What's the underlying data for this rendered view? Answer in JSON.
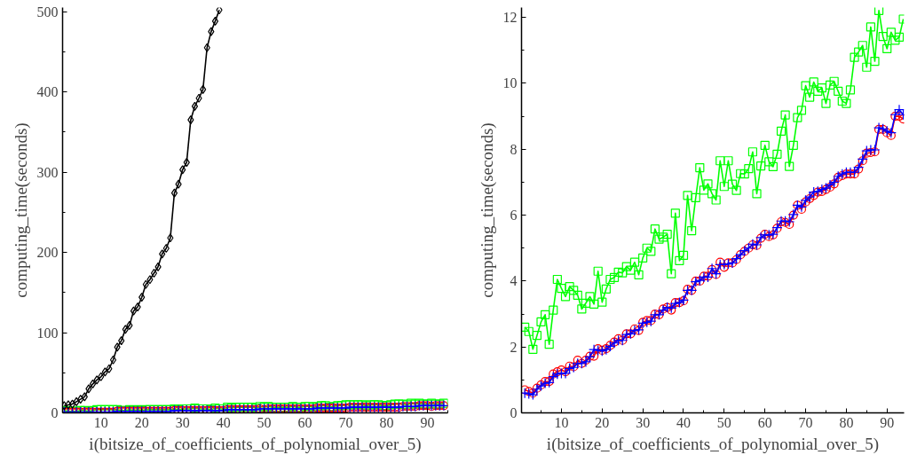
{
  "chart_data": [
    {
      "type": "line",
      "xlabel": "i(bitsize_of_coefficients_of_polynomial_over_5)",
      "ylabel": "computing_time(seconds)",
      "xlim": [
        0.6,
        95
      ],
      "ylim": [
        0,
        505
      ],
      "xticks": [
        10,
        20,
        30,
        40,
        50,
        60,
        70,
        80,
        90
      ],
      "yticks": [
        0,
        100,
        200,
        300,
        400,
        500
      ],
      "grid": false,
      "line_style": "solid",
      "x": [
        1,
        2,
        3,
        4,
        5,
        6,
        7,
        8,
        9,
        10,
        11,
        12,
        13,
        14,
        15,
        16,
        17,
        18,
        19,
        20,
        21,
        22,
        23,
        24,
        25,
        26,
        27,
        28,
        29,
        30,
        31,
        32,
        33,
        34,
        35,
        36,
        37,
        38,
        39,
        40,
        41,
        42,
        43,
        44,
        45,
        46,
        47,
        48,
        49,
        50,
        51,
        52,
        53,
        54,
        55,
        56,
        57,
        58,
        59,
        60,
        61,
        62,
        63,
        64,
        65,
        66,
        67,
        68,
        69,
        70,
        71,
        72,
        73,
        74,
        75,
        76,
        77,
        78,
        79,
        80,
        81,
        82,
        83,
        84,
        85,
        86,
        87,
        88,
        89,
        90,
        91,
        92,
        93,
        94
      ],
      "series": [
        {
          "color": "#00ff00",
          "marker": "square",
          "values": [
            3,
            2,
            2,
            2,
            3,
            3,
            2,
            3,
            4,
            4,
            4,
            4,
            4,
            4,
            3,
            3,
            4,
            3,
            4,
            3,
            4,
            4,
            4,
            4,
            4,
            4,
            4,
            5,
            4,
            5,
            5,
            5,
            6,
            5,
            5,
            5,
            4,
            6,
            5,
            5,
            7,
            6,
            7,
            7,
            7,
            7,
            7,
            6,
            8,
            7,
            8,
            7,
            7,
            7,
            7,
            7,
            8,
            7,
            7,
            8,
            8,
            7,
            8,
            9,
            9,
            7,
            8,
            9,
            9,
            10,
            10,
            10,
            10,
            10,
            9,
            10,
            10,
            10,
            9,
            9,
            10,
            11,
            11,
            11,
            10,
            12,
            11,
            12,
            11,
            11,
            12,
            11,
            11,
            12
          ]
        },
        {
          "type": "scatter",
          "color": "#ff0000",
          "marker": "circle",
          "values": [
            1,
            1,
            1,
            1,
            1,
            1,
            1,
            1,
            1,
            1,
            1,
            1,
            1,
            2,
            2,
            2,
            2,
            2,
            2,
            2,
            2,
            2,
            2,
            2,
            2,
            2,
            2,
            3,
            3,
            3,
            3,
            3,
            3,
            3,
            3,
            3,
            3,
            3,
            3,
            3,
            4,
            4,
            4,
            4,
            4,
            4,
            4,
            4,
            5,
            4,
            5,
            5,
            5,
            5,
            5,
            5,
            5,
            5,
            5,
            5,
            5,
            5,
            6,
            6,
            6,
            6,
            6,
            6,
            6,
            6,
            7,
            7,
            7,
            7,
            7,
            7,
            7,
            7,
            7,
            7,
            7,
            7,
            7,
            8,
            8,
            8,
            8,
            9,
            9,
            9,
            8,
            9,
            9,
            9
          ]
        },
        {
          "color": "#0000ff",
          "marker": "cross",
          "values": [
            1,
            1,
            1,
            1,
            1,
            1,
            1,
            1,
            1,
            1,
            1,
            1,
            1,
            2,
            2,
            2,
            2,
            2,
            2,
            2,
            2,
            2,
            2,
            2,
            2,
            2,
            2,
            3,
            3,
            3,
            3,
            3,
            3,
            3,
            3,
            3,
            3,
            3,
            3,
            3,
            4,
            4,
            4,
            4,
            4,
            4,
            4,
            4,
            5,
            5,
            5,
            5,
            5,
            5,
            5,
            5,
            5,
            5,
            5,
            5,
            5,
            5,
            6,
            6,
            6,
            6,
            6,
            6,
            6,
            6,
            7,
            7,
            7,
            7,
            7,
            7,
            7,
            7,
            7,
            7,
            7,
            7,
            7,
            8,
            8,
            8,
            8,
            9,
            9,
            9,
            9,
            9,
            9,
            9
          ]
        },
        {
          "color": "#000000",
          "marker": "diamond",
          "x": [
            1,
            2,
            3,
            4,
            5,
            6,
            7,
            8,
            9,
            10,
            11,
            12,
            13,
            14,
            15,
            16,
            17,
            18,
            19,
            20,
            21,
            22,
            23,
            24,
            25,
            26,
            27,
            28,
            29,
            30,
            31,
            32,
            33,
            34,
            35,
            36,
            37,
            38,
            39
          ],
          "values": [
            9,
            10,
            11,
            14,
            17,
            20,
            30,
            36,
            41,
            45,
            51,
            55,
            66,
            82,
            90,
            104,
            109,
            127,
            132,
            144,
            160,
            166,
            174,
            182,
            198,
            205,
            218,
            274,
            285,
            303,
            312,
            365,
            382,
            392,
            403,
            455,
            475,
            488,
            502
          ]
        }
      ]
    },
    {
      "type": "line",
      "xlabel": "i(bitsize_of_coefficients_of_polynomial_over_5)",
      "ylabel": "computing_time(seconds)",
      "xlim": [
        0.2,
        94.2
      ],
      "ylim": [
        0,
        12.3
      ],
      "xticks": [
        10,
        20,
        30,
        40,
        50,
        60,
        70,
        80,
        90
      ],
      "yticks": [
        0,
        2,
        4,
        6,
        8,
        10,
        12
      ],
      "grid": false,
      "line_style": "solid",
      "x": [
        1,
        2,
        3,
        4,
        5,
        6,
        7,
        8,
        9,
        10,
        11,
        12,
        13,
        14,
        15,
        16,
        17,
        18,
        19,
        20,
        21,
        22,
        23,
        24,
        25,
        26,
        27,
        28,
        29,
        30,
        31,
        32,
        33,
        34,
        35,
        36,
        37,
        38,
        39,
        40,
        41,
        42,
        43,
        44,
        45,
        46,
        47,
        48,
        49,
        50,
        51,
        52,
        53,
        54,
        55,
        56,
        57,
        58,
        59,
        60,
        61,
        62,
        63,
        64,
        65,
        66,
        67,
        68,
        69,
        70,
        71,
        72,
        73,
        74,
        75,
        76,
        77,
        78,
        79,
        80,
        81,
        82,
        83,
        84,
        85,
        86,
        87,
        88,
        89,
        90,
        91,
        92,
        93,
        94
      ],
      "series": [
        {
          "color": "#00ff00",
          "marker": "square",
          "values": [
            2.6,
            2.47,
            1.93,
            2.35,
            2.76,
            2.98,
            2.08,
            3.12,
            4.05,
            3.78,
            3.53,
            3.83,
            3.72,
            3.57,
            3.15,
            3.33,
            3.53,
            3.3,
            4.3,
            3.36,
            3.76,
            4.05,
            4.11,
            4.27,
            4.25,
            4.44,
            4.33,
            4.57,
            4.19,
            4.7,
            5.0,
            4.9,
            5.58,
            5.27,
            5.33,
            5.42,
            4.22,
            6.06,
            4.62,
            4.78,
            6.6,
            5.53,
            6.53,
            7.44,
            6.76,
            6.95,
            6.65,
            6.46,
            7.65,
            6.87,
            7.65,
            6.94,
            6.75,
            7.26,
            7.25,
            7.41,
            7.92,
            6.65,
            7.49,
            8.12,
            7.62,
            7.47,
            7.85,
            8.55,
            9.04,
            7.48,
            8.12,
            8.96,
            9.18,
            9.93,
            9.58,
            10.04,
            9.76,
            9.86,
            9.39,
            9.95,
            10.06,
            9.76,
            9.46,
            9.39,
            9.8,
            10.79,
            10.95,
            11.15,
            10.49,
            11.71,
            10.67,
            12.21,
            11.42,
            11.05,
            11.55,
            11.31,
            11.4,
            11.95
          ]
        },
        {
          "color": "#ff0000",
          "marker": "circle",
          "values": [
            0.7,
            0.65,
            0.6,
            0.75,
            0.85,
            0.95,
            0.95,
            1.18,
            1.25,
            1.3,
            1.25,
            1.42,
            1.4,
            1.6,
            1.5,
            1.6,
            1.72,
            1.72,
            1.95,
            1.9,
            1.95,
            2.05,
            2.15,
            2.25,
            2.2,
            2.4,
            2.4,
            2.55,
            2.5,
            2.75,
            2.8,
            2.8,
            3.0,
            2.98,
            3.15,
            3.2,
            3.12,
            3.35,
            3.35,
            3.4,
            3.75,
            3.72,
            4.0,
            4.0,
            4.15,
            4.15,
            4.35,
            4.2,
            4.57,
            4.42,
            4.55,
            4.55,
            4.65,
            4.8,
            4.9,
            5.0,
            5.1,
            5.08,
            5.3,
            5.42,
            5.35,
            5.4,
            5.6,
            5.8,
            5.78,
            5.72,
            6.0,
            6.3,
            6.18,
            6.4,
            6.5,
            6.6,
            6.7,
            6.72,
            6.78,
            6.85,
            6.95,
            7.15,
            7.2,
            7.25,
            7.25,
            7.25,
            7.4,
            7.65,
            7.88,
            7.9,
            7.92,
            8.6,
            8.6,
            8.5,
            8.42,
            9.0,
            9.0,
            8.92
          ]
        },
        {
          "color": "#0000ff",
          "marker": "cross",
          "values": [
            0.6,
            0.58,
            0.55,
            0.72,
            0.82,
            0.9,
            0.92,
            1.1,
            1.18,
            1.2,
            1.2,
            1.35,
            1.38,
            1.5,
            1.5,
            1.55,
            1.7,
            1.92,
            1.9,
            1.88,
            1.92,
            2.02,
            2.12,
            2.2,
            2.2,
            2.38,
            2.4,
            2.5,
            2.52,
            2.72,
            2.75,
            2.78,
            2.98,
            2.98,
            3.12,
            3.2,
            3.18,
            3.32,
            3.35,
            3.42,
            3.72,
            3.72,
            3.98,
            4.02,
            4.12,
            4.12,
            4.38,
            4.22,
            4.5,
            4.5,
            4.52,
            4.55,
            4.68,
            4.8,
            4.92,
            5.0,
            5.12,
            5.1,
            5.32,
            5.4,
            5.4,
            5.42,
            5.62,
            5.82,
            5.82,
            5.8,
            6.02,
            6.3,
            6.25,
            6.45,
            6.55,
            6.7,
            6.72,
            6.78,
            6.82,
            6.92,
            7.0,
            7.18,
            7.25,
            7.3,
            7.3,
            7.3,
            7.45,
            7.7,
            7.95,
            7.98,
            7.98,
            8.65,
            8.62,
            8.55,
            8.5,
            9.05,
            9.2,
            9.05
          ]
        }
      ]
    }
  ]
}
